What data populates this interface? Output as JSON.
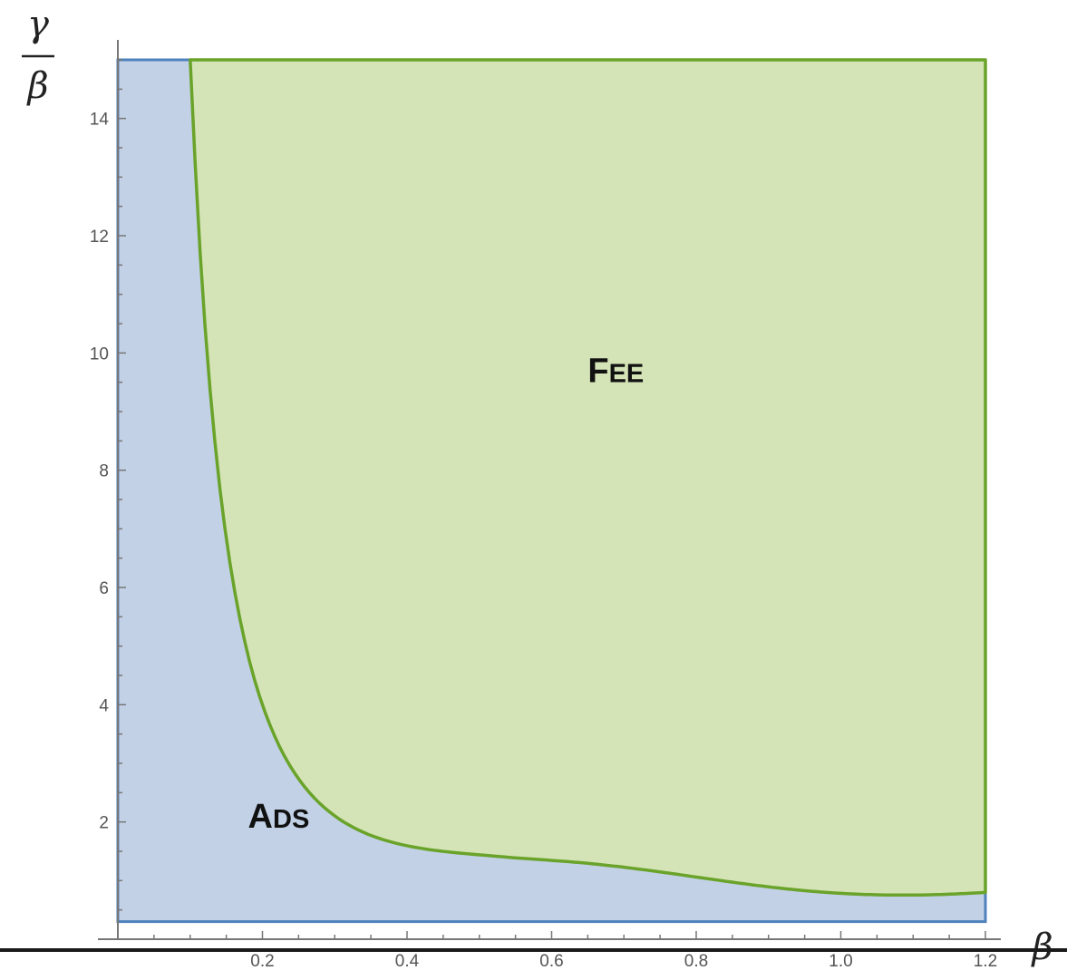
{
  "chart_data": {
    "type": "area",
    "xlabel": "β",
    "ylabel": {
      "numerator": "γ",
      "denominator": "β"
    },
    "xlim": [
      0,
      1.2
    ],
    "ylim": [
      0,
      15
    ],
    "x_ticks": [
      0.2,
      0.4,
      0.6,
      0.8,
      1.0,
      1.2
    ],
    "x_tick_labels": [
      "0.2",
      "0.4",
      "0.6",
      "0.8",
      "1.0",
      "1.2"
    ],
    "y_ticks": [
      2,
      4,
      6,
      8,
      10,
      12,
      14
    ],
    "y_tick_labels": [
      "2",
      "4",
      "6",
      "8",
      "10",
      "12",
      "14"
    ],
    "grid": false,
    "regions": [
      {
        "name": "ADS",
        "label": {
          "big": "A",
          "small": "DS"
        },
        "label_at": {
          "x": 0.18,
          "y": 1.9
        },
        "fill": "#c2d1e6",
        "stroke": "#4f81bd",
        "bounds": {
          "x": [
            0,
            1.2
          ],
          "y": [
            0.3,
            15
          ]
        }
      },
      {
        "name": "FEE",
        "label": {
          "big": "F",
          "small": "EE"
        },
        "label_at": {
          "x": 0.65,
          "y": 9.5
        },
        "fill": "#d4e4b6",
        "stroke": "#6aa32a",
        "boundary_curve": {
          "x": [
            0.1,
            0.12,
            0.15,
            0.2,
            0.25,
            0.3,
            0.4,
            0.5,
            0.6,
            0.7,
            0.8,
            0.9,
            1.0,
            1.1,
            1.2
          ],
          "y": [
            15.0,
            10.42,
            6.67,
            3.75,
            2.4,
            1.67,
            0.94,
            0.6,
            0.42,
            0.31,
            0.23,
            0.19,
            0.15,
            0.12,
            0.1
          ]
        }
      }
    ]
  }
}
